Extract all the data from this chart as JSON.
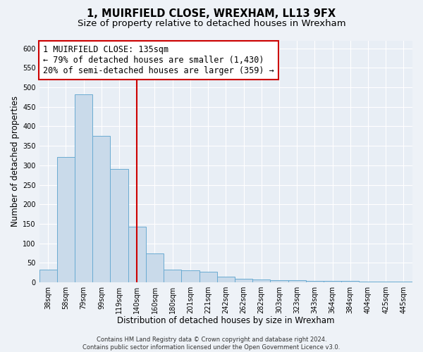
{
  "title_line1": "1, MUIRFIELD CLOSE, WREXHAM, LL13 9FX",
  "title_line2": "Size of property relative to detached houses in Wrexham",
  "xlabel": "Distribution of detached houses by size in Wrexham",
  "ylabel": "Number of detached properties",
  "categories": [
    "38sqm",
    "58sqm",
    "79sqm",
    "99sqm",
    "119sqm",
    "140sqm",
    "160sqm",
    "180sqm",
    "201sqm",
    "221sqm",
    "242sqm",
    "262sqm",
    "282sqm",
    "303sqm",
    "323sqm",
    "343sqm",
    "364sqm",
    "384sqm",
    "404sqm",
    "425sqm",
    "445sqm"
  ],
  "values": [
    32,
    322,
    482,
    375,
    290,
    143,
    75,
    32,
    30,
    28,
    15,
    10,
    8,
    6,
    5,
    4,
    3,
    3,
    2,
    2,
    2
  ],
  "bar_color": "#c9daea",
  "bar_edge_color": "#6aabd2",
  "vline_x_index": 5,
  "vline_color": "#cc0000",
  "annotation_line1": "1 MUIRFIELD CLOSE: 135sqm",
  "annotation_line2": "← 79% of detached houses are smaller (1,430)",
  "annotation_line3": "20% of semi-detached houses are larger (359) →",
  "annotation_box_color": "#ffffff",
  "annotation_box_edge_color": "#cc0000",
  "ylim": [
    0,
    620
  ],
  "yticks": [
    0,
    50,
    100,
    150,
    200,
    250,
    300,
    350,
    400,
    450,
    500,
    550,
    600
  ],
  "footer_line1": "Contains HM Land Registry data © Crown copyright and database right 2024.",
  "footer_line2": "Contains public sector information licensed under the Open Government Licence v3.0.",
  "background_color": "#eef2f7",
  "plot_bg_color": "#e8eef5",
  "grid_color": "#ffffff",
  "title_fontsize": 10.5,
  "subtitle_fontsize": 9.5,
  "axis_label_fontsize": 8.5,
  "tick_fontsize": 7,
  "annotation_fontsize": 8.5,
  "footer_fontsize": 6
}
